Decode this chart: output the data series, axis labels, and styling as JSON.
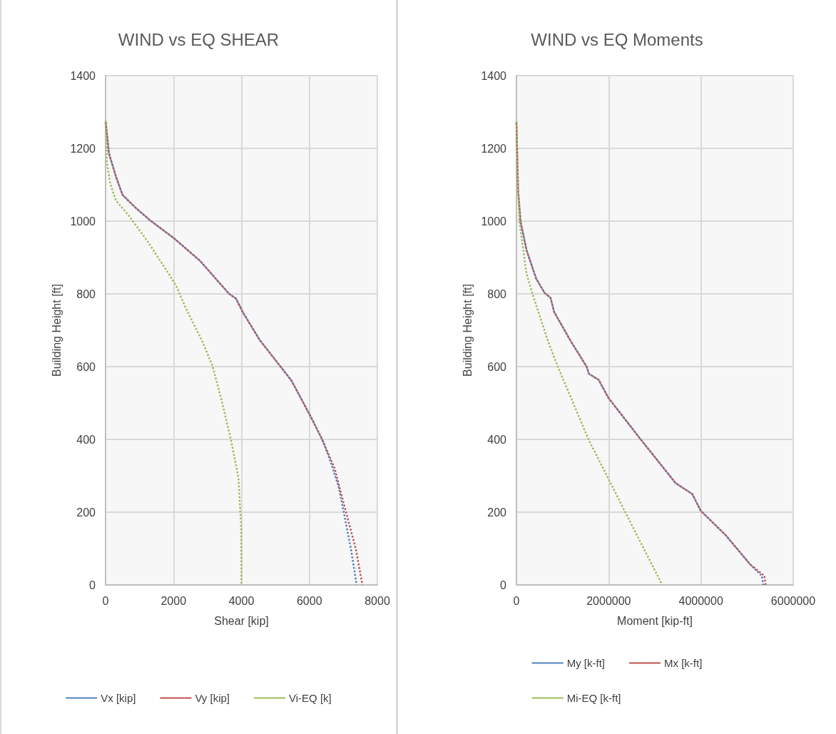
{
  "chart_data": [
    {
      "type": "line",
      "title": "WIND vs EQ SHEAR",
      "xlabel": "Shear [kip]",
      "ylabel": "Building Height [ft]",
      "xlim": [
        0,
        8000
      ],
      "xticks": [
        0,
        2000,
        4000,
        6000,
        8000
      ],
      "ylim": [
        0,
        1400
      ],
      "yticks": [
        0,
        200,
        400,
        600,
        800,
        1000,
        1200,
        1400
      ],
      "grid": true,
      "legend": "bottom",
      "marker": "none",
      "line_style": "dotted",
      "series": [
        {
          "name": "Vx [kip]",
          "color": "#4f81bd",
          "x": [
            0,
            100,
            310,
            500,
            880,
            1300,
            2000,
            2780,
            3630,
            3840,
            4050,
            4540,
            5470,
            6020,
            6380,
            6590,
            6860,
            7010,
            7225,
            7390
          ],
          "values": [
            1275,
            1186,
            1121,
            1072,
            1037,
            1003,
            954,
            891,
            801,
            787,
            748,
            673,
            562,
            466,
            399,
            348,
            270,
            201,
            98,
            0
          ]
        },
        {
          "name": "Vy [kip]",
          "color": "#c0504d",
          "x": [
            0,
            100,
            310,
            500,
            880,
            1300,
            2000,
            2780,
            3630,
            3840,
            4050,
            4540,
            5470,
            6020,
            6380,
            6740,
            7075,
            7370,
            7560
          ],
          "values": [
            1275,
            1186,
            1121,
            1072,
            1037,
            1003,
            954,
            891,
            801,
            787,
            748,
            673,
            562,
            466,
            399,
            321,
            201,
            98,
            0
          ]
        },
        {
          "name": "Vi-EQ [k]",
          "color": "#9bbb59",
          "x": [
            0,
            40,
            140,
            310,
            670,
            1240,
            1880,
            2090,
            2360,
            2830,
            3140,
            3420,
            3690,
            3910,
            3990,
            4000
          ],
          "values": [
            1275,
            1161,
            1102,
            1056,
            1017,
            944,
            852,
            820,
            761,
            673,
            604,
            506,
            399,
            295,
            163,
            0
          ]
        }
      ]
    },
    {
      "type": "line",
      "title": "WIND vs EQ Moments",
      "xlabel": "Moment [kip-ft]",
      "ylabel": "Building Height [ft]",
      "xlim": [
        0,
        6000000
      ],
      "xticks": [
        0,
        2000000,
        4000000,
        6000000
      ],
      "ylim": [
        0,
        1400
      ],
      "yticks": [
        0,
        200,
        400,
        600,
        800,
        1000,
        1200,
        1400
      ],
      "grid": true,
      "legend": "bottom",
      "marker": "none",
      "line_style": "dotted",
      "series": [
        {
          "name": "My [k-ft]",
          "color": "#4f81bd",
          "x": [
            0,
            37000,
            89000,
            219000,
            428000,
            609000,
            740000,
            818000,
            1183000,
            1522000,
            1573000,
            1781000,
            1990000,
            2669000,
            3450000,
            3605000,
            3812000,
            3995000,
            4542000,
            5062000,
            5320000,
            5350000
          ],
          "values": [
            1273,
            1084,
            999,
            920,
            842,
            803,
            789,
            750,
            669,
            600,
            580,
            564,
            515,
            404,
            280,
            267,
            250,
            204,
            136,
            57,
            25,
            0
          ]
        },
        {
          "name": "Mx [k-ft]",
          "color": "#c0504d",
          "x": [
            0,
            37000,
            89000,
            219000,
            428000,
            609000,
            740000,
            818000,
            1183000,
            1522000,
            1573000,
            1781000,
            1990000,
            2669000,
            3450000,
            3605000,
            3812000,
            3995000,
            4542000,
            5062000,
            5375000,
            5400000
          ],
          "values": [
            1273,
            1084,
            999,
            920,
            842,
            803,
            789,
            750,
            669,
            600,
            580,
            564,
            515,
            404,
            280,
            267,
            250,
            204,
            136,
            57,
            25,
            0
          ]
        },
        {
          "name": "Mi-EQ [k-ft]",
          "color": "#9bbb59",
          "x": [
            0,
            27000,
            63000,
            219000,
            375000,
            688000,
            897000,
            1573000,
            1990000,
            2355000,
            3162000
          ],
          "values": [
            1273,
            1117,
            999,
            855,
            789,
            669,
            600,
            397,
            293,
            201,
            0
          ]
        }
      ]
    }
  ]
}
